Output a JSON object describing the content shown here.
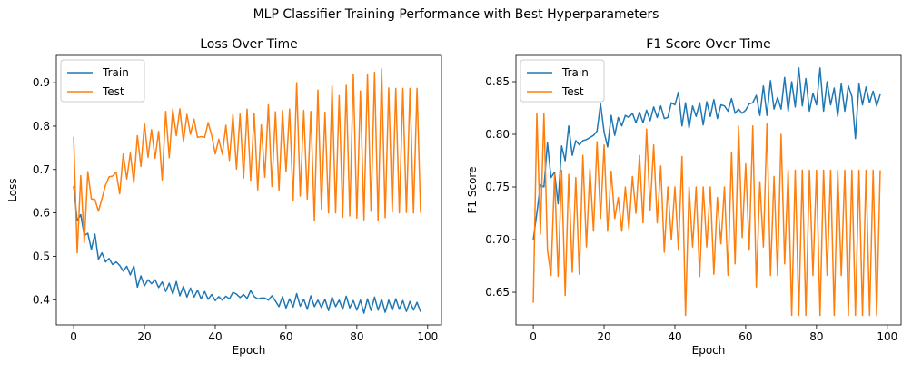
{
  "figure": {
    "title": "MLP Classifier Training Performance with Best Hyperparameters"
  },
  "chart_data": [
    {
      "type": "line",
      "title": "Loss Over Time",
      "xlabel": "Epoch",
      "ylabel": "Loss",
      "xlim": [
        -4.9,
        103.9
      ],
      "ylim": [
        0.342,
        0.963
      ],
      "xticks": [
        0,
        20,
        40,
        60,
        80,
        100
      ],
      "yticks": [
        0.4,
        0.5,
        0.6,
        0.7,
        0.8,
        0.9
      ],
      "xtick_labels": [
        "0",
        "20",
        "40",
        "60",
        "80",
        "100"
      ],
      "ytick_labels": [
        "0.4",
        "0.5",
        "0.6",
        "0.7",
        "0.8",
        "0.9"
      ],
      "grid": false,
      "legend": "upper left",
      "series": [
        {
          "name": "Train",
          "color": "#1f77b4",
          "x": [
            0,
            1,
            2,
            3,
            4,
            5,
            6,
            7,
            8,
            9,
            10,
            11,
            12,
            13,
            14,
            15,
            16,
            17,
            18,
            19,
            20,
            21,
            22,
            23,
            24,
            25,
            26,
            27,
            28,
            29,
            30,
            31,
            32,
            33,
            34,
            35,
            36,
            37,
            38,
            39,
            40,
            41,
            42,
            43,
            44,
            45,
            46,
            47,
            48,
            49,
            50,
            51,
            52,
            53,
            54,
            55,
            56,
            57,
            58,
            59,
            60,
            61,
            62,
            63,
            64,
            65,
            66,
            67,
            68,
            69,
            70,
            71,
            72,
            73,
            74,
            75,
            76,
            77,
            78,
            79,
            80,
            81,
            82,
            83,
            84,
            85,
            86,
            87,
            88,
            89,
            90,
            91,
            92,
            93,
            94,
            95,
            96,
            97,
            98
          ],
          "values": [
            0.662,
            0.582,
            0.596,
            0.548,
            0.553,
            0.516,
            0.551,
            0.493,
            0.508,
            0.487,
            0.495,
            0.481,
            0.487,
            0.479,
            0.466,
            0.477,
            0.457,
            0.478,
            0.429,
            0.455,
            0.432,
            0.446,
            0.437,
            0.446,
            0.428,
            0.441,
            0.419,
            0.438,
            0.413,
            0.442,
            0.409,
            0.431,
            0.406,
            0.427,
            0.406,
            0.422,
            0.402,
            0.419,
            0.401,
            0.412,
            0.398,
            0.407,
            0.399,
            0.408,
            0.402,
            0.417,
            0.413,
            0.405,
            0.412,
            0.403,
            0.421,
            0.407,
            0.402,
            0.404,
            0.404,
            0.399,
            0.409,
            0.397,
            0.384,
            0.407,
            0.381,
            0.402,
            0.383,
            0.414,
            0.385,
            0.401,
            0.378,
            0.409,
            0.384,
            0.399,
            0.382,
            0.401,
            0.375,
            0.406,
            0.384,
            0.399,
            0.378,
            0.408,
            0.381,
            0.398,
            0.376,
            0.399,
            0.369,
            0.402,
            0.375,
            0.406,
            0.376,
            0.401,
            0.371,
            0.399,
            0.376,
            0.402,
            0.378,
            0.398,
            0.373,
            0.396,
            0.376,
            0.394,
            0.372
          ]
        },
        {
          "name": "Test",
          "color": "#ff7f0e",
          "x": [
            0,
            1,
            2,
            3,
            4,
            5,
            6,
            7,
            8,
            9,
            10,
            11,
            12,
            13,
            14,
            15,
            16,
            17,
            18,
            19,
            20,
            21,
            22,
            23,
            24,
            25,
            26,
            27,
            28,
            29,
            30,
            31,
            32,
            33,
            34,
            35,
            36,
            37,
            38,
            39,
            40,
            41,
            42,
            43,
            44,
            45,
            46,
            47,
            48,
            49,
            50,
            51,
            52,
            53,
            54,
            55,
            56,
            57,
            58,
            59,
            60,
            61,
            62,
            63,
            64,
            65,
            66,
            67,
            68,
            69,
            70,
            71,
            72,
            73,
            74,
            75,
            76,
            77,
            78,
            79,
            80,
            81,
            82,
            83,
            84,
            85,
            86,
            87,
            88,
            89,
            90,
            91,
            92,
            93,
            94,
            95,
            96,
            97,
            98
          ],
          "values": [
            0.775,
            0.508,
            0.686,
            0.531,
            0.695,
            0.632,
            0.631,
            0.604,
            0.633,
            0.664,
            0.683,
            0.685,
            0.694,
            0.644,
            0.736,
            0.678,
            0.738,
            0.669,
            0.778,
            0.707,
            0.807,
            0.728,
            0.792,
            0.726,
            0.788,
            0.676,
            0.834,
            0.727,
            0.839,
            0.778,
            0.84,
            0.764,
            0.827,
            0.781,
            0.816,
            0.774,
            0.776,
            0.774,
            0.808,
            0.778,
            0.736,
            0.77,
            0.735,
            0.802,
            0.721,
            0.827,
            0.701,
            0.828,
            0.68,
            0.839,
            0.675,
            0.829,
            0.653,
            0.803,
            0.682,
            0.849,
            0.661,
            0.833,
            0.652,
            0.836,
            0.695,
            0.839,
            0.628,
            0.9,
            0.639,
            0.836,
            0.632,
            0.834,
            0.582,
            0.883,
            0.609,
            0.832,
            0.6,
            0.893,
            0.6,
            0.87,
            0.59,
            0.894,
            0.593,
            0.92,
            0.588,
            0.881,
            0.584,
            0.92,
            0.604,
            0.924,
            0.583,
            0.932,
            0.589,
            0.888,
            0.602,
            0.887,
            0.6,
            0.887,
            0.601,
            0.887,
            0.6,
            0.887,
            0.6
          ]
        }
      ]
    },
    {
      "type": "line",
      "title": "F1 Score Over Time",
      "xlabel": "Epoch",
      "ylabel": "F1 Score",
      "xlim": [
        -4.9,
        103.9
      ],
      "ylim": [
        0.619,
        0.875
      ],
      "xticks": [
        0,
        20,
        40,
        60,
        80,
        100
      ],
      "yticks": [
        0.65,
        0.7,
        0.75,
        0.8,
        0.85
      ],
      "xtick_labels": [
        "0",
        "20",
        "40",
        "60",
        "80",
        "100"
      ],
      "ytick_labels": [
        "0.65",
        "0.70",
        "0.75",
        "0.80",
        "0.85"
      ],
      "grid": false,
      "legend": "upper left",
      "series": [
        {
          "name": "Train",
          "color": "#1f77b4",
          "x": [
            0,
            1,
            2,
            3,
            4,
            5,
            6,
            7,
            8,
            9,
            10,
            11,
            12,
            13,
            14,
            15,
            16,
            17,
            18,
            19,
            20,
            21,
            22,
            23,
            24,
            25,
            26,
            27,
            28,
            29,
            30,
            31,
            32,
            33,
            34,
            35,
            36,
            37,
            38,
            39,
            40,
            41,
            42,
            43,
            44,
            45,
            46,
            47,
            48,
            49,
            50,
            51,
            52,
            53,
            54,
            55,
            56,
            57,
            58,
            59,
            60,
            61,
            62,
            63,
            64,
            65,
            66,
            67,
            68,
            69,
            70,
            71,
            72,
            73,
            74,
            75,
            76,
            77,
            78,
            79,
            80,
            81,
            82,
            83,
            84,
            85,
            86,
            87,
            88,
            89,
            90,
            91,
            92,
            93,
            94,
            95,
            96,
            97,
            98
          ],
          "values": [
            0.7,
            0.725,
            0.752,
            0.75,
            0.792,
            0.759,
            0.764,
            0.734,
            0.789,
            0.775,
            0.808,
            0.78,
            0.794,
            0.79,
            0.794,
            0.795,
            0.797,
            0.799,
            0.803,
            0.829,
            0.802,
            0.788,
            0.818,
            0.799,
            0.816,
            0.808,
            0.818,
            0.816,
            0.82,
            0.811,
            0.821,
            0.811,
            0.823,
            0.813,
            0.826,
            0.816,
            0.827,
            0.815,
            0.816,
            0.83,
            0.828,
            0.84,
            0.808,
            0.83,
            0.806,
            0.827,
            0.817,
            0.83,
            0.809,
            0.831,
            0.817,
            0.833,
            0.815,
            0.828,
            0.827,
            0.822,
            0.834,
            0.82,
            0.824,
            0.82,
            0.823,
            0.829,
            0.83,
            0.837,
            0.818,
            0.846,
            0.818,
            0.851,
            0.824,
            0.835,
            0.824,
            0.854,
            0.822,
            0.85,
            0.826,
            0.863,
            0.827,
            0.853,
            0.822,
            0.839,
            0.828,
            0.863,
            0.822,
            0.85,
            0.828,
            0.844,
            0.817,
            0.848,
            0.822,
            0.846,
            0.836,
            0.796,
            0.848,
            0.828,
            0.845,
            0.83,
            0.841,
            0.827,
            0.838
          ]
        },
        {
          "name": "Test",
          "color": "#ff7f0e",
          "x": [
            0,
            1,
            2,
            3,
            4,
            5,
            6,
            7,
            8,
            9,
            10,
            11,
            12,
            13,
            14,
            15,
            16,
            17,
            18,
            19,
            20,
            21,
            22,
            23,
            24,
            25,
            26,
            27,
            28,
            29,
            30,
            31,
            32,
            33,
            34,
            35,
            36,
            37,
            38,
            39,
            40,
            41,
            42,
            43,
            44,
            45,
            46,
            47,
            48,
            49,
            50,
            51,
            52,
            53,
            54,
            55,
            56,
            57,
            58,
            59,
            60,
            61,
            62,
            63,
            64,
            65,
            66,
            67,
            68,
            69,
            70,
            71,
            72,
            73,
            74,
            75,
            76,
            77,
            78,
            79,
            80,
            81,
            82,
            83,
            84,
            85,
            86,
            87,
            88,
            89,
            90,
            91,
            92,
            93,
            94,
            95,
            96,
            97,
            98
          ],
          "values": [
            0.64,
            0.82,
            0.705,
            0.82,
            0.69,
            0.666,
            0.762,
            0.665,
            0.766,
            0.647,
            0.762,
            0.669,
            0.759,
            0.667,
            0.78,
            0.693,
            0.767,
            0.708,
            0.793,
            0.72,
            0.79,
            0.708,
            0.765,
            0.72,
            0.74,
            0.708,
            0.75,
            0.71,
            0.76,
            0.725,
            0.78,
            0.716,
            0.805,
            0.728,
            0.79,
            0.716,
            0.77,
            0.688,
            0.75,
            0.7,
            0.75,
            0.69,
            0.779,
            0.628,
            0.75,
            0.693,
            0.75,
            0.665,
            0.75,
            0.693,
            0.75,
            0.667,
            0.74,
            0.696,
            0.75,
            0.666,
            0.783,
            0.677,
            0.808,
            0.702,
            0.772,
            0.69,
            0.808,
            0.655,
            0.755,
            0.693,
            0.81,
            0.666,
            0.76,
            0.666,
            0.8,
            0.677,
            0.766,
            0.628,
            0.766,
            0.628,
            0.766,
            0.628,
            0.766,
            0.666,
            0.766,
            0.628,
            0.766,
            0.666,
            0.766,
            0.628,
            0.766,
            0.666,
            0.766,
            0.628,
            0.766,
            0.628,
            0.766,
            0.628,
            0.766,
            0.628,
            0.766,
            0.628,
            0.766
          ]
        }
      ]
    }
  ]
}
